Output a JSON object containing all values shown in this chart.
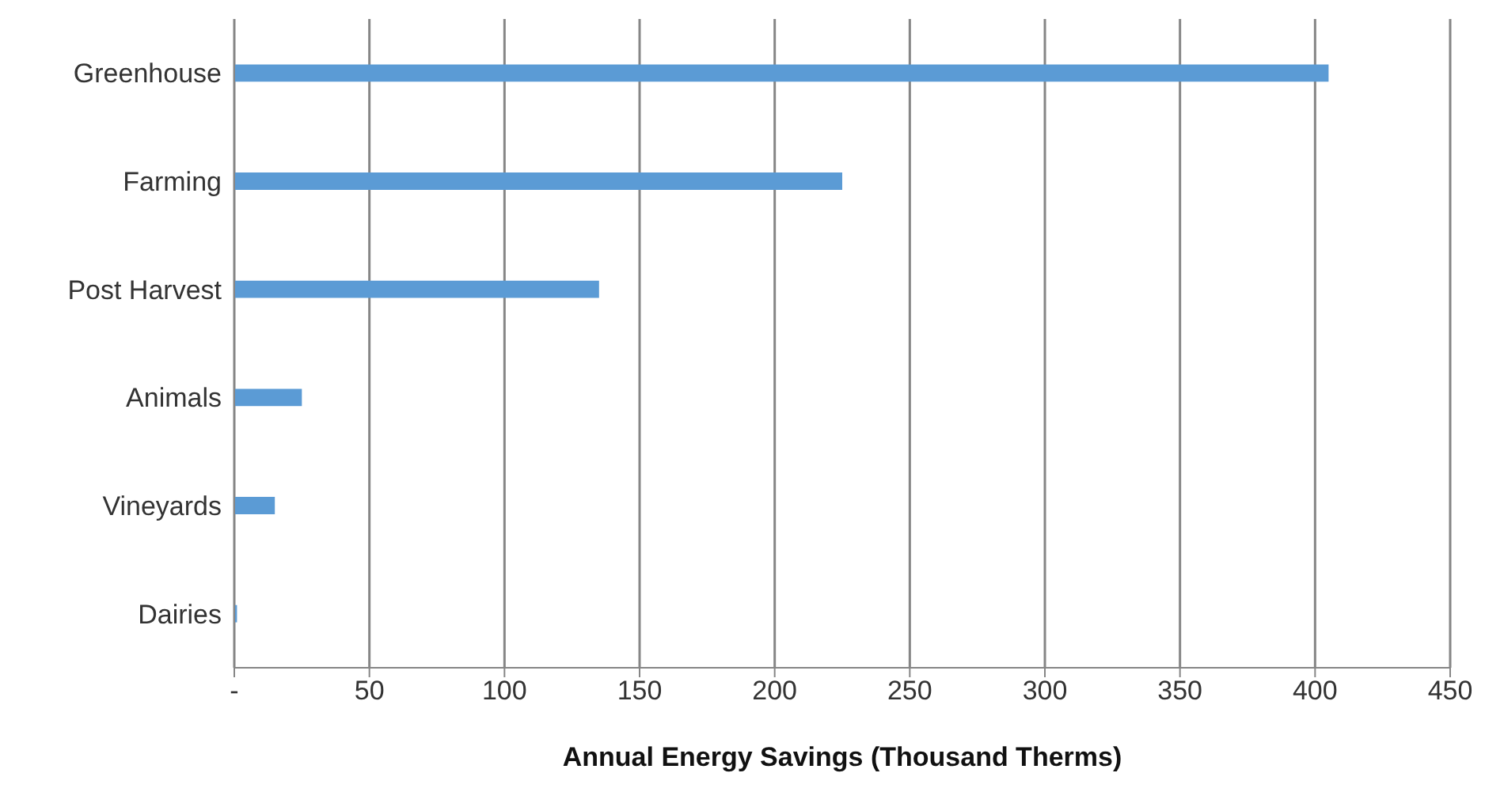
{
  "chart_data": {
    "type": "bar",
    "orientation": "horizontal",
    "xlabel": "Annual Energy Savings (Thousand Therms)",
    "categories": [
      "Greenhouse",
      "Farming",
      "Post Harvest",
      "Animals",
      "Vineyards",
      "Dairies"
    ],
    "values": [
      405,
      225,
      135,
      25,
      15,
      1
    ],
    "color": "#5b9bd5",
    "xlim": [
      0,
      450
    ],
    "xticks": [
      {
        "value": 0,
        "label": "-"
      },
      50,
      100,
      150,
      200,
      250,
      300,
      350,
      400,
      450
    ],
    "grid": "x",
    "legend": false
  }
}
